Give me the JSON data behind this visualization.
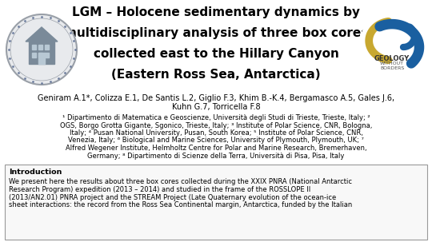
{
  "title_line1": "LGM – Holocene sedimentary dynamics by",
  "title_line2": "multidisciplinary analysis of three box cores",
  "title_line3": "collected east to the Hillary Canyon",
  "title_line4": "(Eastern Ross Sea, Antarctica)",
  "authors_line1": "Geniram A.1*, Colizza E.1, De Santis L.2, Giglio F.3, Khim B.-K.4, Bergamasco A.5, Gales J.6,",
  "authors_line2": "Kuhn G.7, Torricella F.8",
  "affil_line1": "¹ Dipartimento di Matematica e Geoscienze, Università degli Studi di Trieste, Trieste, Italy; ²",
  "affil_line2": "OGS, Borgo Grotta Gigante, Sgonico, Trieste, Italy; ³ Institute of Polar Science, CNR, Bologna,",
  "affil_line3": "Italy; ⁴ Pusan National University, Pusan, South Korea; ⁵ Institute of Polar Science, CNR,",
  "affil_line4": "Venezia, Italy; ⁶ Biological and Marine Sciences, University of Plymouth, Plymouth, UK; ⁷",
  "affil_line5": "Alfred Wegener Institute, Helmholtz Centre for Polar and Marine Research, Bremerhaven,",
  "affil_line6": "Germany; ⁸ Dipartimento di Scienze della Terra, Università di Pisa, Pisa, Italy",
  "intro_title": "Introduction",
  "intro_line1": "We present here the results about three box cores collected during the XXIX PNRA (National Antarctic",
  "intro_line2": "Research Program) expedition (2013 – 2014) and studied in the frame of the ROSSLOPE II",
  "intro_line3": "(2013/AN2.01) PNRA project and the STREAM Project (Late Quaternary evolution of the ocean-ice",
  "intro_line4": "sheet interactions: the record from the Ross Sea Continental margin, Antarctica, funded by the Italian",
  "bg_color": "#ffffff",
  "title_color": "#000000",
  "title_fontsize": 11.0,
  "author_fontsize": 7.0,
  "affil_fontsize": 6.0,
  "intro_title_fontsize": 6.8,
  "intro_text_fontsize": 6.0,
  "border_color": "#999999",
  "intro_bg": "#f8f8f8"
}
